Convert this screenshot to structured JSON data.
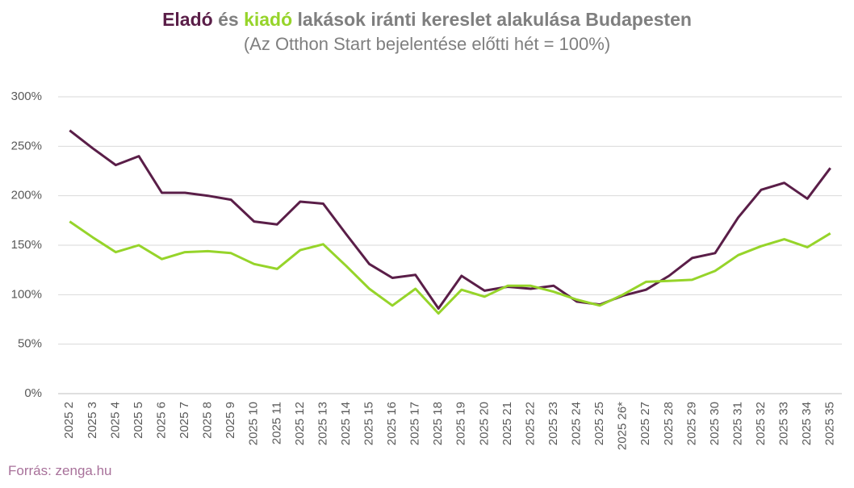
{
  "chart_data": {
    "type": "line",
    "title": "lakások iránti kereslet alakulása Budapesten",
    "title_joiner": "és",
    "subtitle": "(Az Otthon Start bejelentése előtti hét = 100%)",
    "source": "Forrás: zenga.hu",
    "categories": [
      "2025 2",
      "2025 3",
      "2025 4",
      "2025 5",
      "2025 6",
      "2025 7",
      "2025 8",
      "2025 9",
      "2025 10",
      "2025 11",
      "2025 12",
      "2025 13",
      "2025 14",
      "2025 15",
      "2025 16",
      "2025 17",
      "2025 18",
      "2025 19",
      "2025 20",
      "2025 21",
      "2025 22",
      "2025 23",
      "2025 24",
      "2025 25",
      "2025 26*",
      "2025 27",
      "2025 28",
      "2025 29",
      "2025 30",
      "2025 31",
      "2025 32",
      "2025 33",
      "2025 34",
      "2025 35"
    ],
    "series": [
      {
        "name": "Eladó",
        "color": "#5a1e48",
        "values": [
          266,
          248,
          231,
          240,
          203,
          203,
          200,
          196,
          174,
          171,
          194,
          192,
          161,
          131,
          117,
          120,
          86,
          119,
          104,
          108,
          106,
          109,
          93,
          90,
          99,
          105,
          119,
          137,
          142,
          178,
          206,
          213,
          197,
          228
        ]
      },
      {
        "name": "kiadó",
        "color": "#96d42a",
        "values": [
          174,
          158,
          143,
          150,
          136,
          143,
          144,
          142,
          131,
          126,
          145,
          151,
          129,
          106,
          89,
          106,
          81,
          105,
          98,
          109,
          109,
          103,
          95,
          89,
          100,
          113,
          114,
          115,
          124,
          140,
          149,
          156,
          148,
          162
        ]
      }
    ],
    "ylim": [
      0,
      300
    ],
    "yticks": [
      {
        "value": 0,
        "label": "0%"
      },
      {
        "value": 50,
        "label": "50%"
      },
      {
        "value": 100,
        "label": "100%"
      },
      {
        "value": 150,
        "label": "150%"
      },
      {
        "value": 200,
        "label": "200%"
      },
      {
        "value": 250,
        "label": "250%"
      },
      {
        "value": 300,
        "label": "300%"
      }
    ],
    "grid": true
  }
}
